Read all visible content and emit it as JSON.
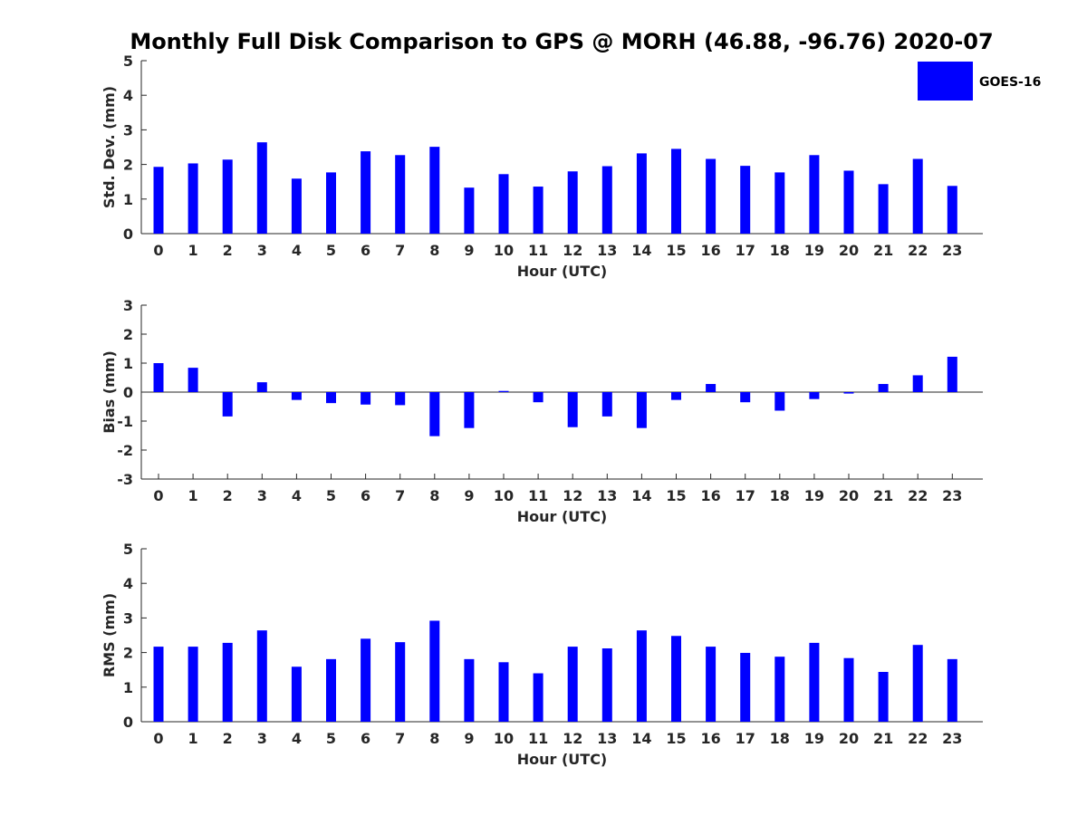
{
  "figure": {
    "title": "Monthly Full Disk Comparison to GPS @ MORH (46.88, -96.76) 2020-07",
    "legend": {
      "label": "GOES-16",
      "color": "#0000ff",
      "placement": "top-right"
    }
  },
  "chart_data": [
    {
      "type": "bar",
      "categories": [
        "0",
        "1",
        "2",
        "3",
        "4",
        "5",
        "6",
        "7",
        "8",
        "9",
        "10",
        "11",
        "12",
        "13",
        "14",
        "15",
        "16",
        "17",
        "18",
        "19",
        "20",
        "21",
        "22",
        "23"
      ],
      "series": [
        {
          "name": "GOES-16",
          "color": "#0000ff",
          "values": [
            1.93,
            2.03,
            2.14,
            2.64,
            1.59,
            1.77,
            2.38,
            2.27,
            2.51,
            1.33,
            1.72,
            1.36,
            1.8,
            1.95,
            2.32,
            2.45,
            2.16,
            1.96,
            1.77,
            2.27,
            1.82,
            1.43,
            2.16,
            1.38
          ]
        }
      ],
      "xlabel": "Hour (UTC)",
      "ylabel": "Std. Dev. (mm)",
      "ylim": [
        0,
        5
      ],
      "yticks": [
        0,
        1,
        2,
        3,
        4,
        5
      ],
      "grid": false
    },
    {
      "type": "bar",
      "categories": [
        "0",
        "1",
        "2",
        "3",
        "4",
        "5",
        "6",
        "7",
        "8",
        "9",
        "10",
        "11",
        "12",
        "13",
        "14",
        "15",
        "16",
        "17",
        "18",
        "19",
        "20",
        "21",
        "22",
        "23"
      ],
      "series": [
        {
          "name": "GOES-16",
          "color": "#0000ff",
          "values": [
            1.0,
            0.84,
            -0.84,
            0.34,
            -0.27,
            -0.38,
            -0.43,
            -0.45,
            -1.52,
            -1.24,
            0.04,
            -0.35,
            -1.21,
            -0.84,
            -1.24,
            -0.27,
            0.28,
            -0.35,
            -0.64,
            -0.24,
            -0.05,
            0.28,
            0.58,
            1.22
          ]
        }
      ],
      "xlabel": "Hour (UTC)",
      "ylabel": "Bias (mm)",
      "ylim": [
        -3,
        3
      ],
      "yticks": [
        -3,
        -2,
        -1,
        0,
        1,
        2,
        3
      ],
      "zero_line": true,
      "grid": false
    },
    {
      "type": "bar",
      "categories": [
        "0",
        "1",
        "2",
        "3",
        "4",
        "5",
        "6",
        "7",
        "8",
        "9",
        "10",
        "11",
        "12",
        "13",
        "14",
        "15",
        "16",
        "17",
        "18",
        "19",
        "20",
        "21",
        "22",
        "23"
      ],
      "series": [
        {
          "name": "GOES-16",
          "color": "#0000ff",
          "values": [
            2.17,
            2.17,
            2.28,
            2.64,
            1.59,
            1.81,
            2.4,
            2.3,
            2.92,
            1.81,
            1.72,
            1.4,
            2.17,
            2.12,
            2.64,
            2.48,
            2.17,
            1.99,
            1.88,
            2.28,
            1.84,
            1.44,
            2.22,
            1.81
          ]
        }
      ],
      "xlabel": "Hour (UTC)",
      "ylabel": "RMS (mm)",
      "ylim": [
        0,
        5
      ],
      "yticks": [
        0,
        1,
        2,
        3,
        4,
        5
      ],
      "grid": false
    }
  ]
}
